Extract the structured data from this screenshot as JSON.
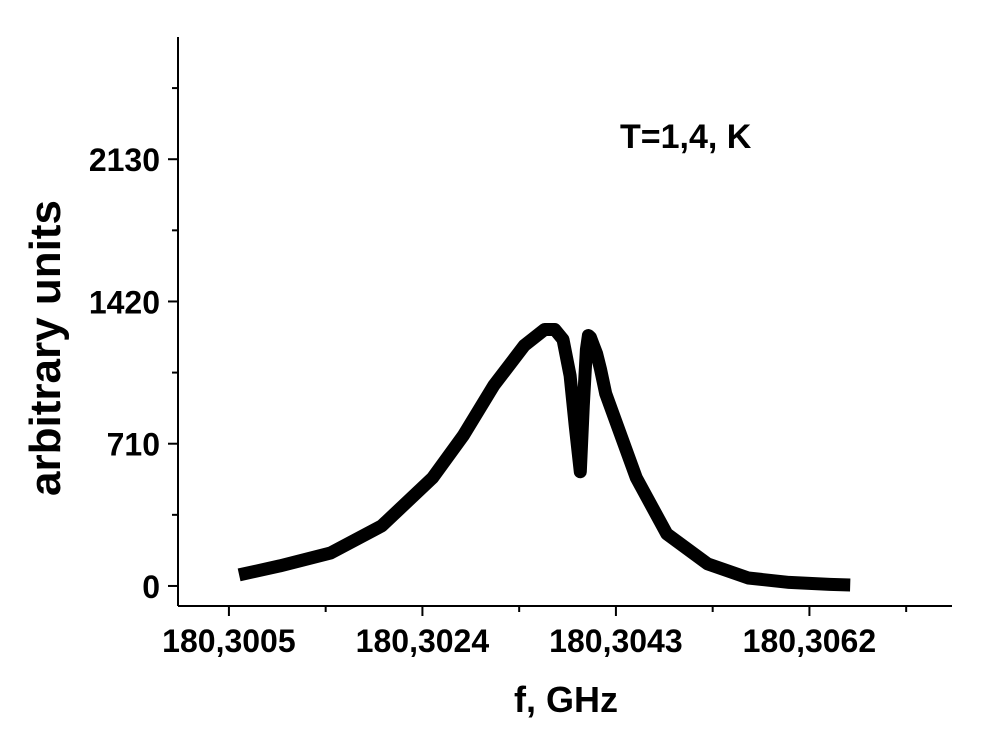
{
  "chart_data": {
    "type": "line",
    "title": "",
    "annotation": "T=1,4, K",
    "xlabel": "f, GHz",
    "ylabel": "arbitrary units",
    "x_ticks": [
      180.3005,
      180.3024,
      180.3043,
      180.3062
    ],
    "x_tick_labels": [
      "180,3005",
      "180,3024",
      "180,3043",
      "180,3062"
    ],
    "y_ticks": [
      0,
      710,
      1420,
      2130
    ],
    "y_tick_labels": [
      "0",
      "710",
      "1420",
      "2130"
    ],
    "xlim": [
      180.3,
      180.3076
    ],
    "ylim": [
      -100,
      2740
    ],
    "grid": false,
    "series": [
      {
        "color": "#000000",
        "x": [
          180.3006,
          180.301,
          180.3015,
          180.302,
          180.3025,
          180.3028,
          180.3031,
          180.3034,
          180.3036,
          180.3037,
          180.30378,
          180.30385,
          180.3039,
          180.30395,
          180.30398,
          180.30401,
          180.30403,
          180.30405,
          180.30408,
          180.30411,
          180.30415,
          180.3042,
          180.3045,
          180.3048,
          180.3052,
          180.3056,
          180.306,
          180.3064,
          180.3066
        ],
        "y": [
          55,
          100,
          165,
          300,
          540,
          750,
          1000,
          1200,
          1280,
          1280,
          1230,
          1050,
          800,
          570,
          900,
          1180,
          1250,
          1240,
          1200,
          1160,
          1080,
          960,
          540,
          260,
          110,
          40,
          18,
          8,
          5
        ]
      }
    ]
  }
}
